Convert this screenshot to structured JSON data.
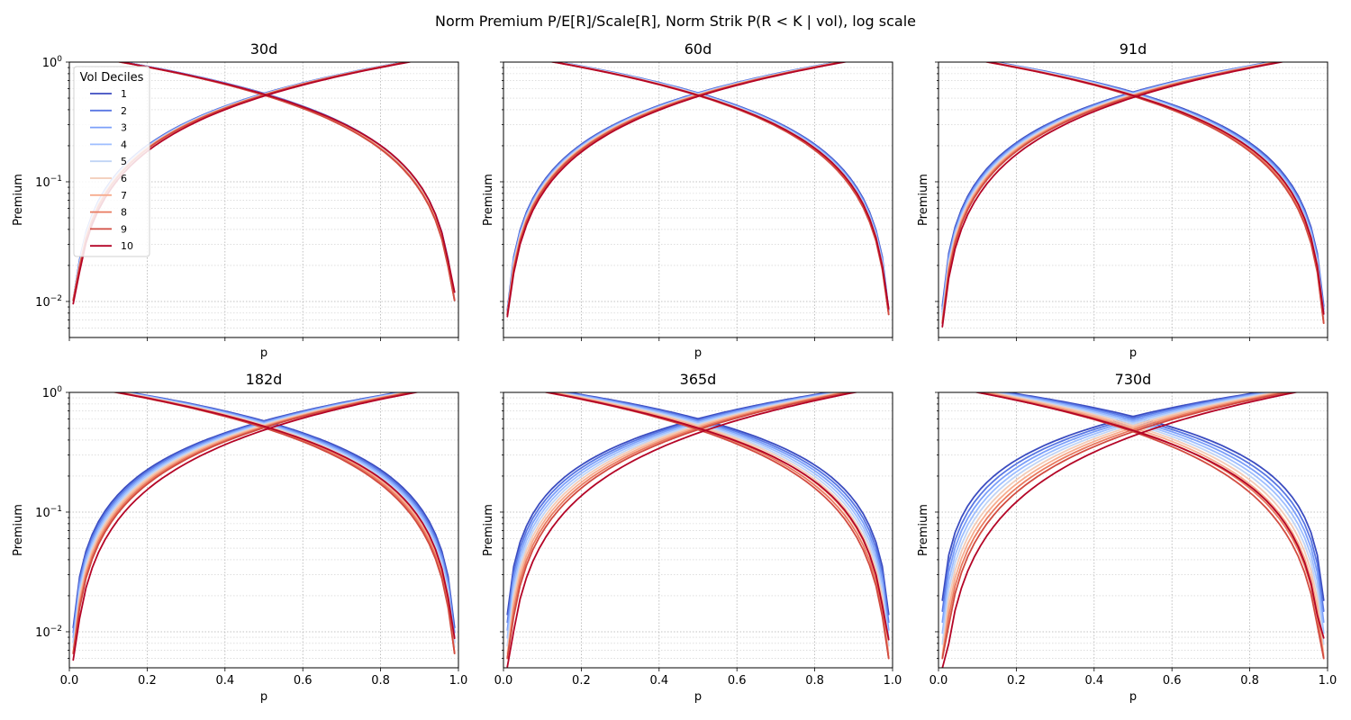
{
  "figure": {
    "title": "Norm Premium P/E[R]/Scale[R], Norm Strik P(R < K | vol), log scale"
  },
  "legend": {
    "title": "Vol Deciles",
    "placement": "upper-left of first panel"
  },
  "deciles": [
    {
      "label": "1",
      "color": "#3b4cc0"
    },
    {
      "label": "2",
      "color": "#5977e3"
    },
    {
      "label": "3",
      "color": "#7b9ff9"
    },
    {
      "label": "4",
      "color": "#9ebeff"
    },
    {
      "label": "5",
      "color": "#c0d4f5"
    },
    {
      "label": "6",
      "color": "#f2cbb7"
    },
    {
      "label": "7",
      "color": "#f7ac8e"
    },
    {
      "label": "8",
      "color": "#e97a5f"
    },
    {
      "label": "9",
      "color": "#d24b40"
    },
    {
      "label": "10",
      "color": "#b40426"
    }
  ],
  "chart_data": [
    {
      "type": "line",
      "title": "30d",
      "xlabel": "p",
      "ylabel": "Premium",
      "xlim": [
        0,
        1
      ],
      "ylim": [
        0.005,
        1
      ],
      "yscale": "log",
      "grid": true,
      "show_xticklabels": false,
      "show_yticklabels": true,
      "series_spread": 0.05,
      "dec10_tail_extra": 0.18,
      "rising_cross_p": 0.5,
      "falling_cross_p": 0.5,
      "min_value": 0.0085
    },
    {
      "type": "line",
      "title": "60d",
      "xlabel": "p",
      "ylabel": "Premium",
      "xlim": [
        0,
        1
      ],
      "ylim": [
        0.005,
        1
      ],
      "yscale": "log",
      "grid": true,
      "show_xticklabels": false,
      "show_yticklabels": false,
      "series_spread": 0.08,
      "dec10_tail_extra": 0.12,
      "rising_cross_p": 0.53,
      "falling_cross_p": 0.47,
      "min_value": 0.0065
    },
    {
      "type": "line",
      "title": "91d",
      "xlabel": "p",
      "ylabel": "Premium",
      "xlim": [
        0,
        1
      ],
      "ylim": [
        0.005,
        1
      ],
      "yscale": "log",
      "grid": true,
      "show_xticklabels": false,
      "show_yticklabels": false,
      "series_spread": 0.12,
      "dec10_tail_extra": 0.2,
      "rising_cross_p": 0.55,
      "falling_cross_p": 0.45,
      "min_value": 0.0055
    },
    {
      "type": "line",
      "title": "182d",
      "xlabel": "p",
      "ylabel": "Premium",
      "xlim": [
        0,
        1
      ],
      "ylim": [
        0.005,
        1
      ],
      "yscale": "log",
      "grid": true,
      "show_xticklabels": true,
      "show_yticklabels": true,
      "series_spread": 0.2,
      "dec10_tail_extra": 0.35,
      "rising_cross_p": 0.56,
      "falling_cross_p": 0.44,
      "min_value": 0.0055
    },
    {
      "type": "line",
      "title": "365d",
      "xlabel": "p",
      "ylabel": "Premium",
      "xlim": [
        0,
        1
      ],
      "ylim": [
        0.005,
        1
      ],
      "yscale": "log",
      "grid": true,
      "show_xticklabels": true,
      "show_yticklabels": false,
      "series_spread": 0.32,
      "dec10_tail_extra": 0.45,
      "rising_cross_p": 0.57,
      "falling_cross_p": 0.43,
      "min_value": 0.005
    },
    {
      "type": "line",
      "title": "730d",
      "xlabel": "p",
      "ylabel": "Premium",
      "xlim": [
        0,
        1
      ],
      "ylim": [
        0.005,
        1
      ],
      "yscale": "log",
      "grid": true,
      "show_xticklabels": true,
      "show_yticklabels": false,
      "series_spread": 0.45,
      "dec10_tail_extra": 0.5,
      "rising_cross_p": 0.6,
      "falling_cross_p": 0.4,
      "min_value": 0.005
    }
  ],
  "x_tick_labels": [
    "0.0",
    "0.2",
    "0.4",
    "0.6",
    "0.8",
    "1.0"
  ],
  "y_tick_labels": {
    "top": "10",
    "top_exp": "0",
    "mid": "10",
    "mid_exp": "−1",
    "low": "10",
    "low_exp": "−2"
  }
}
